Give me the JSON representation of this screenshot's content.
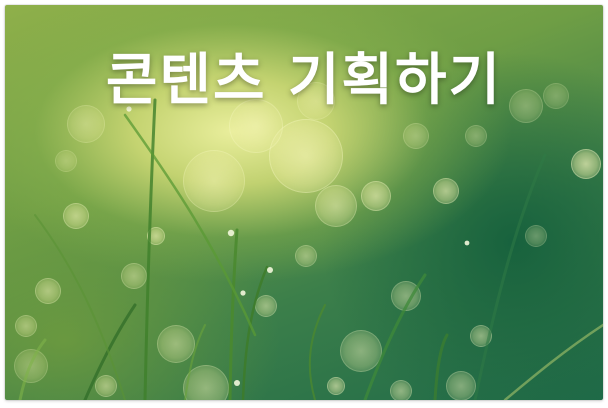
{
  "banner": {
    "title": "콘텐츠 기획하기"
  },
  "colors": {
    "title_text": "#ffffff",
    "bokeh_light": "#f6f3b4",
    "grass_green": "#2f7d3a"
  }
}
